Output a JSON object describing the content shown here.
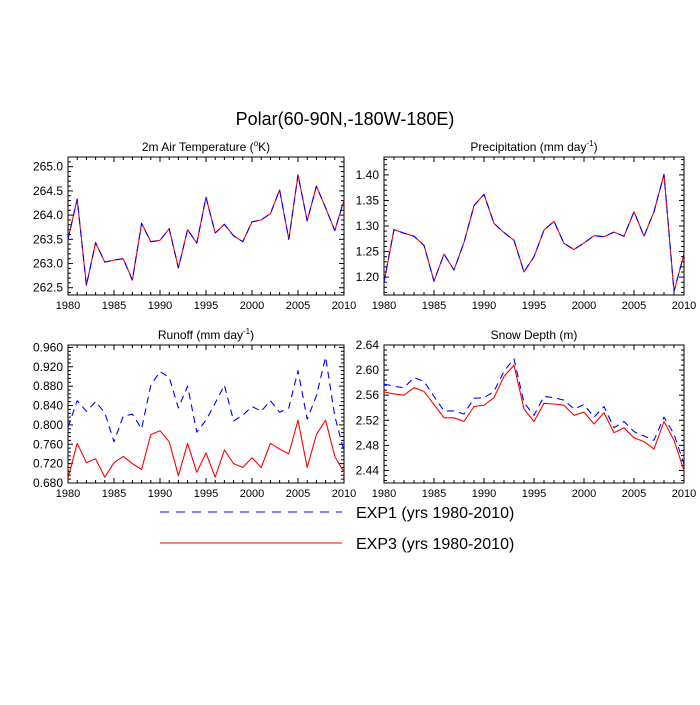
{
  "title": "Polar(60-90N,-180W-180E)",
  "colors": {
    "exp1": "#0000ff",
    "exp3": "#ff0000",
    "axis": "#000000"
  },
  "legend": {
    "entries": [
      {
        "label": "EXP1 (yrs 1980-2010)",
        "series": "exp1",
        "style": "dashed"
      },
      {
        "label": "EXP3 (yrs 1980-2010)",
        "series": "exp3",
        "style": "solid"
      }
    ]
  },
  "chart_data": [
    {
      "type": "line",
      "title": "2m Air Temperature (°K)",
      "title_parts": [
        "2m Air Temperature (",
        "o",
        "K)"
      ],
      "x": [
        1980,
        1981,
        1982,
        1983,
        1984,
        1985,
        1986,
        1987,
        1988,
        1989,
        1990,
        1991,
        1992,
        1993,
        1994,
        1995,
        1996,
        1997,
        1998,
        1999,
        2000,
        2001,
        2002,
        2003,
        2004,
        2005,
        2006,
        2007,
        2008,
        2009,
        2010
      ],
      "xlim": [
        1980,
        2010
      ],
      "xticks": [
        1980,
        1985,
        1990,
        1995,
        2000,
        2005,
        2010
      ],
      "ylim": [
        262.35,
        265.2
      ],
      "yticks": [
        262.5,
        263.0,
        263.5,
        264.0,
        264.5,
        265.0
      ],
      "ytick_labels": [
        "262.5",
        "263.0",
        "263.5",
        "264.0",
        "264.5",
        "265.0"
      ],
      "series": [
        {
          "name": "EXP1",
          "values": [
            263.5,
            264.33,
            262.55,
            263.43,
            263.03,
            263.07,
            263.1,
            262.66,
            263.83,
            263.45,
            263.48,
            263.72,
            262.91,
            263.7,
            263.42,
            264.37,
            263.63,
            263.81,
            263.57,
            263.45,
            263.86,
            263.9,
            264.03,
            264.52,
            263.5,
            264.83,
            263.88,
            264.6,
            264.15,
            263.68,
            264.31
          ]
        },
        {
          "name": "EXP3",
          "values": [
            263.5,
            264.33,
            262.55,
            263.43,
            263.03,
            263.07,
            263.1,
            262.66,
            263.83,
            263.45,
            263.48,
            263.72,
            262.91,
            263.7,
            263.42,
            264.37,
            263.63,
            263.81,
            263.57,
            263.45,
            263.86,
            263.9,
            264.03,
            264.52,
            263.5,
            264.83,
            263.88,
            264.6,
            264.15,
            263.68,
            264.31
          ]
        }
      ]
    },
    {
      "type": "line",
      "title": "Precipitation (mm day-1)",
      "title_parts": [
        "Precipitation (mm day",
        "-1",
        ")"
      ],
      "x": [
        1980,
        1981,
        1982,
        1983,
        1984,
        1985,
        1986,
        1987,
        1988,
        1989,
        1990,
        1991,
        1992,
        1993,
        1994,
        1995,
        1996,
        1997,
        1998,
        1999,
        2000,
        2001,
        2002,
        2003,
        2004,
        2005,
        2006,
        2007,
        2008,
        2009,
        2010
      ],
      "xlim": [
        1980,
        2010
      ],
      "xticks": [
        1980,
        1985,
        1990,
        1995,
        2000,
        2005,
        2010
      ],
      "ylim": [
        1.165,
        1.435
      ],
      "yticks": [
        1.2,
        1.25,
        1.3,
        1.35,
        1.4
      ],
      "ytick_labels": [
        "1.20",
        "1.25",
        "1.30",
        "1.35",
        "1.40"
      ],
      "series": [
        {
          "name": "EXP1",
          "values": [
            1.19,
            1.293,
            1.286,
            1.28,
            1.262,
            1.192,
            1.245,
            1.214,
            1.268,
            1.34,
            1.362,
            1.305,
            1.287,
            1.272,
            1.21,
            1.24,
            1.292,
            1.309,
            1.266,
            1.254,
            1.267,
            1.281,
            1.279,
            1.288,
            1.28,
            1.328,
            1.28,
            1.328,
            1.401,
            1.172,
            1.245
          ]
        },
        {
          "name": "EXP3",
          "values": [
            1.19,
            1.293,
            1.286,
            1.28,
            1.262,
            1.192,
            1.245,
            1.214,
            1.268,
            1.34,
            1.362,
            1.305,
            1.287,
            1.272,
            1.21,
            1.24,
            1.292,
            1.309,
            1.266,
            1.254,
            1.267,
            1.281,
            1.279,
            1.288,
            1.28,
            1.328,
            1.28,
            1.328,
            1.401,
            1.172,
            1.245
          ]
        }
      ]
    },
    {
      "type": "line",
      "title": "Runoff (mm day-1)",
      "title_parts": [
        "Runoff (mm day",
        "-1",
        ")"
      ],
      "x": [
        1980,
        1981,
        1982,
        1983,
        1984,
        1985,
        1986,
        1987,
        1988,
        1989,
        1990,
        1991,
        1992,
        1993,
        1994,
        1995,
        1996,
        1997,
        1998,
        1999,
        2000,
        2001,
        2002,
        2003,
        2004,
        2005,
        2006,
        2007,
        2008,
        2009,
        2010
      ],
      "xlim": [
        1980,
        2010
      ],
      "xticks": [
        1980,
        1985,
        1990,
        1995,
        2000,
        2005,
        2010
      ],
      "ylim": [
        0.68,
        0.965
      ],
      "yticks": [
        0.68,
        0.72,
        0.76,
        0.8,
        0.84,
        0.88,
        0.92,
        0.96
      ],
      "ytick_labels": [
        "0.680",
        "0.720",
        "0.760",
        "0.800",
        "0.840",
        "0.880",
        "0.920",
        "0.960"
      ],
      "series": [
        {
          "name": "EXP1",
          "values": [
            0.795,
            0.85,
            0.828,
            0.848,
            0.825,
            0.765,
            0.818,
            0.822,
            0.792,
            0.882,
            0.91,
            0.898,
            0.835,
            0.88,
            0.785,
            0.81,
            0.845,
            0.882,
            0.808,
            0.82,
            0.838,
            0.828,
            0.85,
            0.826,
            0.835,
            0.912,
            0.812,
            0.86,
            0.94,
            0.818,
            0.745
          ]
        },
        {
          "name": "EXP3",
          "values": [
            0.69,
            0.762,
            0.722,
            0.73,
            0.692,
            0.722,
            0.735,
            0.72,
            0.708,
            0.78,
            0.788,
            0.765,
            0.695,
            0.762,
            0.702,
            0.742,
            0.692,
            0.748,
            0.72,
            0.712,
            0.732,
            0.712,
            0.762,
            0.75,
            0.74,
            0.81,
            0.712,
            0.78,
            0.81,
            0.735,
            0.702
          ]
        }
      ]
    },
    {
      "type": "line",
      "title": "Snow Depth (m)",
      "title_parts": [
        "Snow Depth (m)"
      ],
      "x": [
        1980,
        1981,
        1982,
        1983,
        1984,
        1985,
        1986,
        1987,
        1988,
        1989,
        1990,
        1991,
        1992,
        1993,
        1994,
        1995,
        1996,
        1997,
        1998,
        1999,
        2000,
        2001,
        2002,
        2003,
        2004,
        2005,
        2006,
        2007,
        2008,
        2009,
        2010
      ],
      "xlim": [
        1980,
        2010
      ],
      "xticks": [
        1980,
        1985,
        1990,
        1995,
        2000,
        2005,
        2010
      ],
      "ylim": [
        2.42,
        2.64
      ],
      "yticks": [
        2.44,
        2.48,
        2.52,
        2.56,
        2.6,
        2.64
      ],
      "ytick_labels": [
        "2.44",
        "2.48",
        "2.52",
        "2.56",
        "2.60",
        "2.64"
      ],
      "series": [
        {
          "name": "EXP1",
          "values": [
            2.578,
            2.574,
            2.572,
            2.588,
            2.582,
            2.558,
            2.535,
            2.535,
            2.53,
            2.555,
            2.556,
            2.566,
            2.598,
            2.618,
            2.548,
            2.528,
            2.558,
            2.556,
            2.552,
            2.538,
            2.545,
            2.525,
            2.542,
            2.508,
            2.518,
            2.502,
            2.495,
            2.488,
            2.525,
            2.498,
            2.45
          ]
        },
        {
          "name": "EXP3",
          "values": [
            2.565,
            2.562,
            2.56,
            2.572,
            2.566,
            2.545,
            2.524,
            2.524,
            2.518,
            2.542,
            2.544,
            2.556,
            2.59,
            2.608,
            2.538,
            2.518,
            2.547,
            2.546,
            2.544,
            2.528,
            2.533,
            2.514,
            2.532,
            2.5,
            2.508,
            2.492,
            2.486,
            2.474,
            2.518,
            2.488,
            2.44
          ]
        }
      ]
    }
  ]
}
